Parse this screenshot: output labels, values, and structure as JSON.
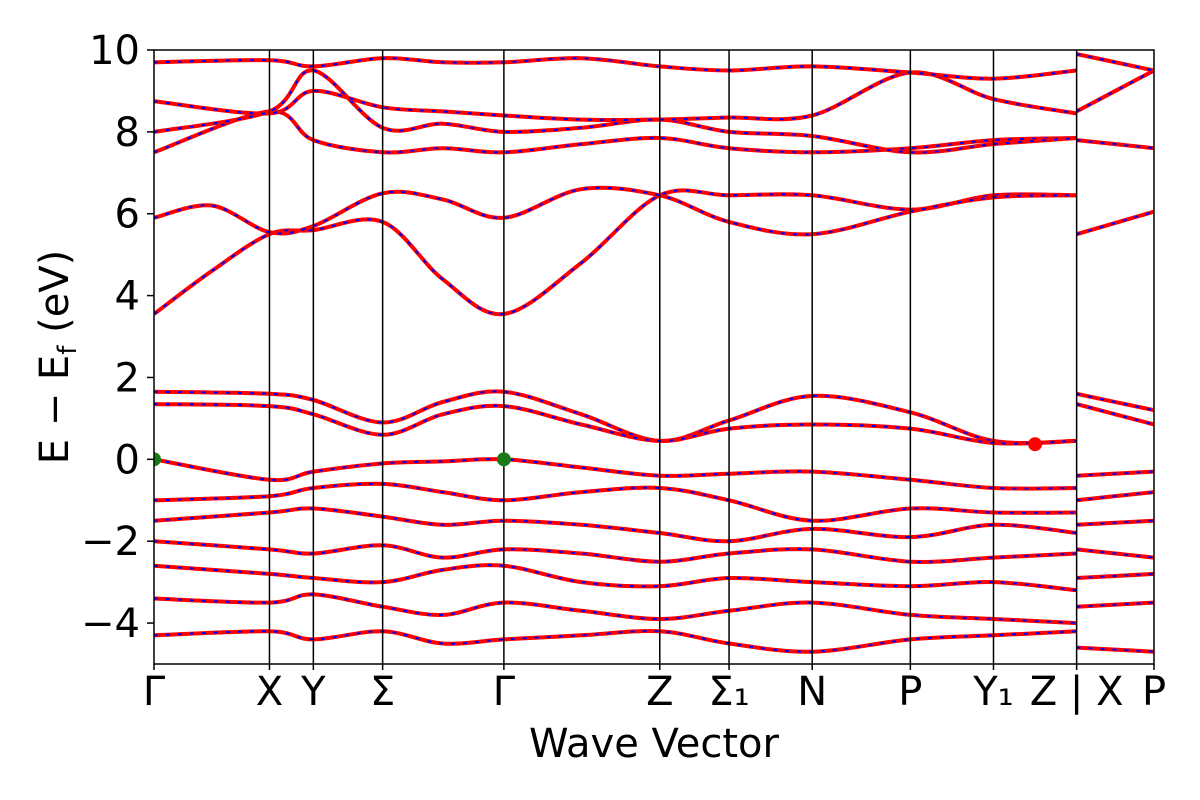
{
  "chart_data": {
    "type": "line",
    "xlabel": "Wave Vector",
    "ylabel": "E − E_f (eV)",
    "ylabel_parts": {
      "pre": "E − E",
      "sub": "f",
      "post": " (eV)"
    },
    "ylim": [
      -5,
      10
    ],
    "yticks": [
      -4,
      -2,
      0,
      2,
      4,
      6,
      8,
      10
    ],
    "ytick_labels": [
      "−4",
      "−2",
      "0",
      "2",
      "4",
      "6",
      "8",
      "10"
    ],
    "grid": false,
    "legend": "none",
    "band_style": {
      "line_color": "#ff0000",
      "dash_color": "#0000ff"
    },
    "kpath_ticks": [
      {
        "label": "Γ",
        "pos": 0.0
      },
      {
        "label": "X",
        "pos": 1.0
      },
      {
        "label": "Y",
        "pos": 1.38
      },
      {
        "label": "Σ",
        "pos": 1.98
      },
      {
        "label": "Γ",
        "pos": 3.03
      },
      {
        "label": "Z",
        "pos": 4.38
      },
      {
        "label": "Σ₁",
        "pos": 4.98
      },
      {
        "label": "N",
        "pos": 5.7
      },
      {
        "label": "P",
        "pos": 6.55
      },
      {
        "label": "Y₁",
        "pos": 7.27
      },
      {
        "label": "Z | X",
        "pos": 7.99
      },
      {
        "label": "P",
        "pos": 8.66
      }
    ],
    "xlim": [
      0,
      8.66
    ],
    "special_points": [
      {
        "name": "VBM",
        "x": 0.0,
        "y": 0.0,
        "color": "#1a7a1a"
      },
      {
        "name": "VBM",
        "x": 3.03,
        "y": 0.0,
        "color": "#1a7a1a"
      },
      {
        "name": "CBM",
        "x": 7.63,
        "y": 0.37,
        "color": "#ff0000"
      }
    ],
    "bands": [
      {
        "x": [
          0,
          0.5,
          1,
          1.38,
          1.98,
          2.5,
          3.03,
          3.7,
          4.38,
          4.98,
          5.7,
          6.55,
          7.27,
          7.99
        ],
        "y": [
          3.55,
          4.6,
          5.5,
          5.6,
          5.8,
          4.4,
          3.55,
          4.8,
          6.45,
          6.45,
          6.45,
          6.1,
          6.45,
          6.45
        ]
      },
      {
        "x": [
          0,
          0.5,
          1,
          1.38,
          1.98,
          2.5,
          3.03,
          3.7,
          4.38,
          4.98,
          5.7,
          6.55,
          7.27,
          7.99
        ],
        "y": [
          5.9,
          6.2,
          5.55,
          5.7,
          6.5,
          6.35,
          5.9,
          6.6,
          6.45,
          5.8,
          5.5,
          6.05,
          6.4,
          6.45
        ]
      },
      {
        "x": [
          0,
          1,
          1.38,
          1.98,
          2.5,
          3.03,
          3.7,
          4.38,
          4.98,
          5.7,
          6.55,
          7.27,
          7.99
        ],
        "y": [
          1.65,
          1.6,
          1.45,
          0.9,
          1.4,
          1.65,
          1.1,
          0.45,
          0.95,
          1.55,
          1.15,
          0.45,
          0.45
        ]
      },
      {
        "x": [
          0,
          1,
          1.38,
          1.98,
          2.5,
          3.03,
          3.7,
          4.38,
          4.98,
          5.7,
          6.55,
          7.27,
          7.99
        ],
        "y": [
          1.35,
          1.3,
          1.1,
          0.6,
          1.1,
          1.3,
          0.85,
          0.45,
          0.75,
          0.85,
          0.75,
          0.4,
          0.45
        ]
      },
      {
        "x": [
          0,
          1,
          1.38,
          1.98,
          2.5,
          3.03,
          3.7,
          4.38,
          4.98,
          5.7,
          6.55,
          7.27,
          7.99
        ],
        "y": [
          0.0,
          -0.5,
          -0.3,
          -0.1,
          -0.05,
          0.0,
          -0.2,
          -0.4,
          -0.35,
          -0.3,
          -0.5,
          -0.7,
          -0.7
        ]
      },
      {
        "x": [
          0,
          1,
          1.38,
          1.98,
          2.5,
          3.03,
          3.7,
          4.38,
          4.98,
          5.7,
          6.55,
          7.27,
          7.99
        ],
        "y": [
          -1.0,
          -0.9,
          -0.7,
          -0.6,
          -0.8,
          -1.0,
          -0.8,
          -0.7,
          -1.0,
          -1.5,
          -1.2,
          -1.3,
          -1.3
        ]
      },
      {
        "x": [
          0,
          1,
          1.38,
          1.98,
          2.5,
          3.03,
          3.7,
          4.38,
          4.98,
          5.7,
          6.55,
          7.27,
          7.99
        ],
        "y": [
          -1.5,
          -1.3,
          -1.2,
          -1.4,
          -1.6,
          -1.5,
          -1.6,
          -1.8,
          -2.0,
          -1.7,
          -1.9,
          -1.6,
          -1.8
        ]
      },
      {
        "x": [
          0,
          1,
          1.38,
          1.98,
          2.5,
          3.03,
          3.7,
          4.38,
          4.98,
          5.7,
          6.55,
          7.27,
          7.99
        ],
        "y": [
          -2.0,
          -2.2,
          -2.3,
          -2.1,
          -2.4,
          -2.2,
          -2.3,
          -2.5,
          -2.3,
          -2.2,
          -2.5,
          -2.4,
          -2.3
        ]
      },
      {
        "x": [
          0,
          1,
          1.38,
          1.98,
          2.5,
          3.03,
          3.7,
          4.38,
          4.98,
          5.7,
          6.55,
          7.27,
          7.99
        ],
        "y": [
          -2.6,
          -2.8,
          -2.9,
          -3.0,
          -2.7,
          -2.6,
          -3.0,
          -3.1,
          -2.9,
          -3.0,
          -3.1,
          -3.0,
          -3.2
        ]
      },
      {
        "x": [
          0,
          1,
          1.38,
          1.98,
          2.5,
          3.03,
          3.7,
          4.38,
          4.98,
          5.7,
          6.55,
          7.27,
          7.99
        ],
        "y": [
          -3.4,
          -3.5,
          -3.3,
          -3.6,
          -3.8,
          -3.5,
          -3.7,
          -3.9,
          -3.7,
          -3.5,
          -3.8,
          -3.9,
          -4.0
        ]
      },
      {
        "x": [
          0,
          1,
          1.38,
          1.98,
          2.5,
          3.03,
          3.7,
          4.38,
          4.98,
          5.7,
          6.55,
          7.27,
          7.99
        ],
        "y": [
          -4.3,
          -4.2,
          -4.4,
          -4.2,
          -4.5,
          -4.4,
          -4.3,
          -4.2,
          -4.5,
          -4.7,
          -4.4,
          -4.3,
          -4.2
        ]
      },
      {
        "x": [
          0,
          1,
          1.38,
          1.98,
          2.5,
          3.03,
          3.7,
          4.38,
          4.98,
          5.7,
          6.55,
          7.27,
          7.99
        ],
        "y": [
          7.5,
          8.5,
          7.8,
          7.5,
          7.6,
          7.5,
          7.7,
          7.85,
          7.6,
          7.5,
          7.6,
          7.8,
          7.85
        ]
      },
      {
        "x": [
          0,
          1,
          1.38,
          1.98,
          2.5,
          3.03,
          3.7,
          4.38,
          4.98,
          5.7,
          6.55,
          7.27,
          7.99
        ],
        "y": [
          8.0,
          8.5,
          9.5,
          8.1,
          8.2,
          8.0,
          8.1,
          8.3,
          8.0,
          7.9,
          7.5,
          7.7,
          7.85
        ]
      },
      {
        "x": [
          0,
          1,
          1.38,
          1.98,
          2.5,
          3.03,
          3.7,
          4.38,
          4.98,
          5.7,
          6.55,
          7.27,
          7.99
        ],
        "y": [
          8.75,
          8.45,
          9.0,
          8.6,
          8.5,
          8.4,
          8.3,
          8.3,
          8.35,
          8.4,
          9.45,
          8.8,
          8.45
        ]
      },
      {
        "x": [
          0,
          1,
          1.38,
          1.98,
          2.5,
          3.03,
          3.7,
          4.38,
          4.98,
          5.7,
          6.55,
          7.27,
          7.99
        ],
        "y": [
          9.7,
          9.75,
          9.6,
          9.8,
          9.7,
          9.7,
          9.8,
          9.6,
          9.5,
          9.6,
          9.45,
          9.3,
          9.5
        ]
      }
    ],
    "bands_right": [
      {
        "x": [
          7.99,
          8.66
        ],
        "y": [
          5.5,
          6.05
        ]
      },
      {
        "x": [
          7.99,
          8.66
        ],
        "y": [
          1.6,
          1.2
        ]
      },
      {
        "x": [
          7.99,
          8.66
        ],
        "y": [
          1.35,
          0.85
        ]
      },
      {
        "x": [
          7.99,
          8.66
        ],
        "y": [
          -0.4,
          -0.3
        ]
      },
      {
        "x": [
          7.99,
          8.66
        ],
        "y": [
          -1.0,
          -0.8
        ]
      },
      {
        "x": [
          7.99,
          8.66
        ],
        "y": [
          -1.6,
          -1.5
        ]
      },
      {
        "x": [
          7.99,
          8.66
        ],
        "y": [
          -2.2,
          -2.4
        ]
      },
      {
        "x": [
          7.99,
          8.66
        ],
        "y": [
          -2.9,
          -2.8
        ]
      },
      {
        "x": [
          7.99,
          8.66
        ],
        "y": [
          -3.6,
          -3.5
        ]
      },
      {
        "x": [
          7.99,
          8.66
        ],
        "y": [
          -4.6,
          -4.7
        ]
      },
      {
        "x": [
          7.99,
          8.66
        ],
        "y": [
          7.8,
          7.6
        ]
      },
      {
        "x": [
          7.99,
          8.66
        ],
        "y": [
          8.5,
          9.5
        ]
      },
      {
        "x": [
          7.99,
          8.66
        ],
        "y": [
          9.9,
          9.5
        ]
      }
    ]
  }
}
